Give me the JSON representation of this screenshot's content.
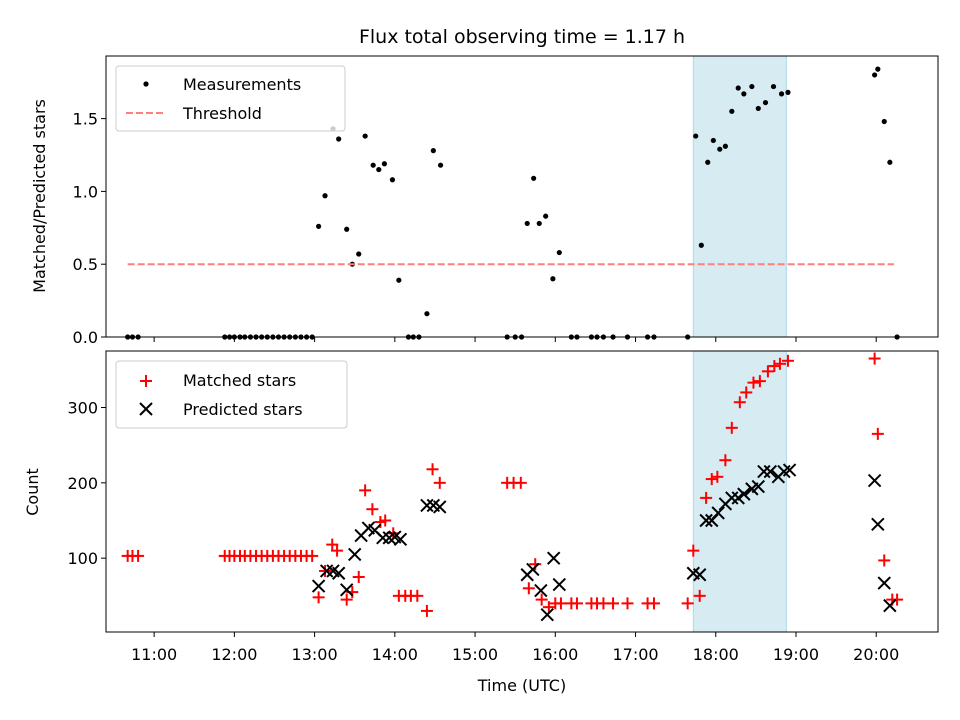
{
  "chart_data": [
    {
      "type": "scatter",
      "title": "Flux total observing time = 1.17 h",
      "ylabel": "Matched/Predicted stars",
      "ylim": [
        0,
        1.93
      ],
      "xlim": [
        10.4,
        20.77
      ],
      "yticks": [
        "0.0",
        "0.5",
        "1.0",
        "1.5"
      ],
      "ytick_values": [
        0,
        0.5,
        1.0,
        1.5
      ],
      "legend_position": "upper-left",
      "highlight_span": [
        17.72,
        18.88
      ],
      "highlight_color": "#add8e6",
      "series": [
        {
          "name": "Measurements",
          "marker": "dot",
          "color": "#000000",
          "points": [
            [
              10.67,
              0
            ],
            [
              10.73,
              0
            ],
            [
              10.8,
              0
            ],
            [
              11.88,
              0
            ],
            [
              11.94,
              0
            ],
            [
              12.0,
              0
            ],
            [
              12.07,
              0
            ],
            [
              12.13,
              0
            ],
            [
              12.2,
              0
            ],
            [
              12.27,
              0
            ],
            [
              12.34,
              0
            ],
            [
              12.41,
              0
            ],
            [
              12.48,
              0
            ],
            [
              12.55,
              0
            ],
            [
              12.62,
              0
            ],
            [
              12.69,
              0
            ],
            [
              12.76,
              0
            ],
            [
              12.83,
              0
            ],
            [
              12.9,
              0
            ],
            [
              12.97,
              0
            ],
            [
              13.05,
              0.76
            ],
            [
              13.13,
              0.97
            ],
            [
              13.23,
              1.43
            ],
            [
              13.3,
              1.36
            ],
            [
              13.4,
              0.74
            ],
            [
              13.47,
              0.5
            ],
            [
              13.55,
              0.57
            ],
            [
              13.63,
              1.38
            ],
            [
              13.73,
              1.18
            ],
            [
              13.8,
              1.15
            ],
            [
              13.87,
              1.19
            ],
            [
              13.97,
              1.08
            ],
            [
              14.05,
              0.39
            ],
            [
              14.17,
              0
            ],
            [
              14.23,
              0
            ],
            [
              14.3,
              0
            ],
            [
              14.4,
              0.16
            ],
            [
              14.48,
              1.28
            ],
            [
              14.57,
              1.18
            ],
            [
              15.4,
              0
            ],
            [
              15.5,
              0
            ],
            [
              15.58,
              0
            ],
            [
              15.65,
              0.78
            ],
            [
              15.73,
              1.09
            ],
            [
              15.8,
              0.78
            ],
            [
              15.88,
              0.83
            ],
            [
              15.97,
              0.4
            ],
            [
              16.05,
              0.58
            ],
            [
              16.2,
              0
            ],
            [
              16.27,
              0
            ],
            [
              16.45,
              0
            ],
            [
              16.52,
              0
            ],
            [
              16.6,
              0
            ],
            [
              16.72,
              0
            ],
            [
              16.9,
              0
            ],
            [
              17.15,
              0
            ],
            [
              17.23,
              0
            ],
            [
              17.65,
              0
            ],
            [
              17.75,
              1.38
            ],
            [
              17.82,
              0.63
            ],
            [
              17.9,
              1.2
            ],
            [
              17.97,
              1.35
            ],
            [
              18.05,
              1.29
            ],
            [
              18.12,
              1.31
            ],
            [
              18.2,
              1.55
            ],
            [
              18.28,
              1.71
            ],
            [
              18.35,
              1.67
            ],
            [
              18.45,
              1.72
            ],
            [
              18.53,
              1.57
            ],
            [
              18.62,
              1.61
            ],
            [
              18.72,
              1.72
            ],
            [
              18.82,
              1.67
            ],
            [
              18.9,
              1.68
            ],
            [
              19.98,
              1.8
            ],
            [
              20.02,
              1.84
            ],
            [
              20.1,
              1.48
            ],
            [
              20.17,
              1.2
            ],
            [
              20.26,
              0
            ]
          ]
        },
        {
          "name": "Threshold",
          "marker": "dashed-line",
          "color": "#ff7f7f",
          "points": [
            [
              10.67,
              0.5
            ],
            [
              20.22,
              0.5
            ]
          ]
        }
      ]
    },
    {
      "type": "scatter",
      "xlabel": "Time (UTC)",
      "ylabel": "Count",
      "ylim": [
        2,
        375
      ],
      "xlim": [
        10.4,
        20.77
      ],
      "yticks": [
        "100",
        "200",
        "300"
      ],
      "ytick_values": [
        100,
        200,
        300
      ],
      "xticks": [
        "11:00",
        "12:00",
        "13:00",
        "14:00",
        "15:00",
        "16:00",
        "17:00",
        "18:00",
        "19:00",
        "20:00"
      ],
      "xtick_values": [
        11,
        12,
        13,
        14,
        15,
        16,
        17,
        18,
        19,
        20
      ],
      "legend_position": "upper-left",
      "highlight_span": [
        17.72,
        18.88
      ],
      "highlight_color": "#add8e6",
      "series": [
        {
          "name": "Matched stars",
          "marker": "plus",
          "color": "#ff0000",
          "points": [
            [
              10.67,
              103
            ],
            [
              10.73,
              103
            ],
            [
              10.8,
              103
            ],
            [
              11.88,
              103
            ],
            [
              11.94,
              103
            ],
            [
              12.0,
              103
            ],
            [
              12.07,
              103
            ],
            [
              12.13,
              103
            ],
            [
              12.2,
              103
            ],
            [
              12.27,
              103
            ],
            [
              12.34,
              103
            ],
            [
              12.41,
              103
            ],
            [
              12.48,
              103
            ],
            [
              12.55,
              103
            ],
            [
              12.62,
              103
            ],
            [
              12.69,
              103
            ],
            [
              12.76,
              103
            ],
            [
              12.83,
              103
            ],
            [
              12.9,
              103
            ],
            [
              12.97,
              103
            ],
            [
              13.05,
              48
            ],
            [
              13.13,
              83
            ],
            [
              13.22,
              118
            ],
            [
              13.28,
              110
            ],
            [
              13.4,
              45
            ],
            [
              13.47,
              55
            ],
            [
              13.55,
              75
            ],
            [
              13.63,
              190
            ],
            [
              13.72,
              165
            ],
            [
              13.82,
              148
            ],
            [
              13.88,
              150
            ],
            [
              13.98,
              133
            ],
            [
              14.05,
              50
            ],
            [
              14.13,
              50
            ],
            [
              14.2,
              50
            ],
            [
              14.28,
              50
            ],
            [
              14.4,
              30
            ],
            [
              14.47,
              218
            ],
            [
              14.56,
              200
            ],
            [
              15.4,
              200
            ],
            [
              15.48,
              200
            ],
            [
              15.57,
              200
            ],
            [
              15.67,
              60
            ],
            [
              15.75,
              92
            ],
            [
              15.83,
              45
            ],
            [
              15.92,
              35
            ],
            [
              16.0,
              40
            ],
            [
              16.07,
              40
            ],
            [
              16.2,
              40
            ],
            [
              16.27,
              40
            ],
            [
              16.45,
              40
            ],
            [
              16.52,
              40
            ],
            [
              16.6,
              40
            ],
            [
              16.72,
              40
            ],
            [
              16.9,
              40
            ],
            [
              17.15,
              40
            ],
            [
              17.23,
              40
            ],
            [
              17.65,
              40
            ],
            [
              17.72,
              110
            ],
            [
              17.8,
              50
            ],
            [
              17.88,
              180
            ],
            [
              17.95,
              205
            ],
            [
              18.02,
              208
            ],
            [
              18.12,
              230
            ],
            [
              18.2,
              273
            ],
            [
              18.3,
              307
            ],
            [
              18.38,
              320
            ],
            [
              18.47,
              333
            ],
            [
              18.55,
              335
            ],
            [
              18.65,
              348
            ],
            [
              18.73,
              355
            ],
            [
              18.8,
              358
            ],
            [
              18.9,
              362
            ],
            [
              19.98,
              365
            ],
            [
              20.02,
              265
            ],
            [
              20.1,
              97
            ],
            [
              20.2,
              45
            ],
            [
              20.26,
              45
            ]
          ]
        },
        {
          "name": "Predicted stars",
          "marker": "x",
          "color": "#000000",
          "points": [
            [
              13.05,
              63
            ],
            [
              13.15,
              83
            ],
            [
              13.23,
              83
            ],
            [
              13.3,
              80
            ],
            [
              13.4,
              58
            ],
            [
              13.5,
              105
            ],
            [
              13.58,
              130
            ],
            [
              13.67,
              140
            ],
            [
              13.75,
              137
            ],
            [
              13.85,
              127
            ],
            [
              13.93,
              127
            ],
            [
              14.0,
              128
            ],
            [
              14.07,
              125
            ],
            [
              14.4,
              170
            ],
            [
              14.48,
              170
            ],
            [
              14.56,
              168
            ],
            [
              15.65,
              78
            ],
            [
              15.72,
              85
            ],
            [
              15.82,
              57
            ],
            [
              15.9,
              25
            ],
            [
              15.98,
              100
            ],
            [
              16.05,
              65
            ],
            [
              17.72,
              80
            ],
            [
              17.8,
              78
            ],
            [
              17.88,
              150
            ],
            [
              17.95,
              150
            ],
            [
              18.03,
              160
            ],
            [
              18.12,
              172
            ],
            [
              18.2,
              180
            ],
            [
              18.28,
              180
            ],
            [
              18.35,
              185
            ],
            [
              18.45,
              192
            ],
            [
              18.53,
              195
            ],
            [
              18.6,
              215
            ],
            [
              18.68,
              215
            ],
            [
              18.78,
              208
            ],
            [
              18.85,
              215
            ],
            [
              18.92,
              217
            ],
            [
              19.98,
              203
            ],
            [
              20.02,
              145
            ],
            [
              20.1,
              67
            ],
            [
              20.17,
              37
            ]
          ]
        }
      ]
    }
  ]
}
